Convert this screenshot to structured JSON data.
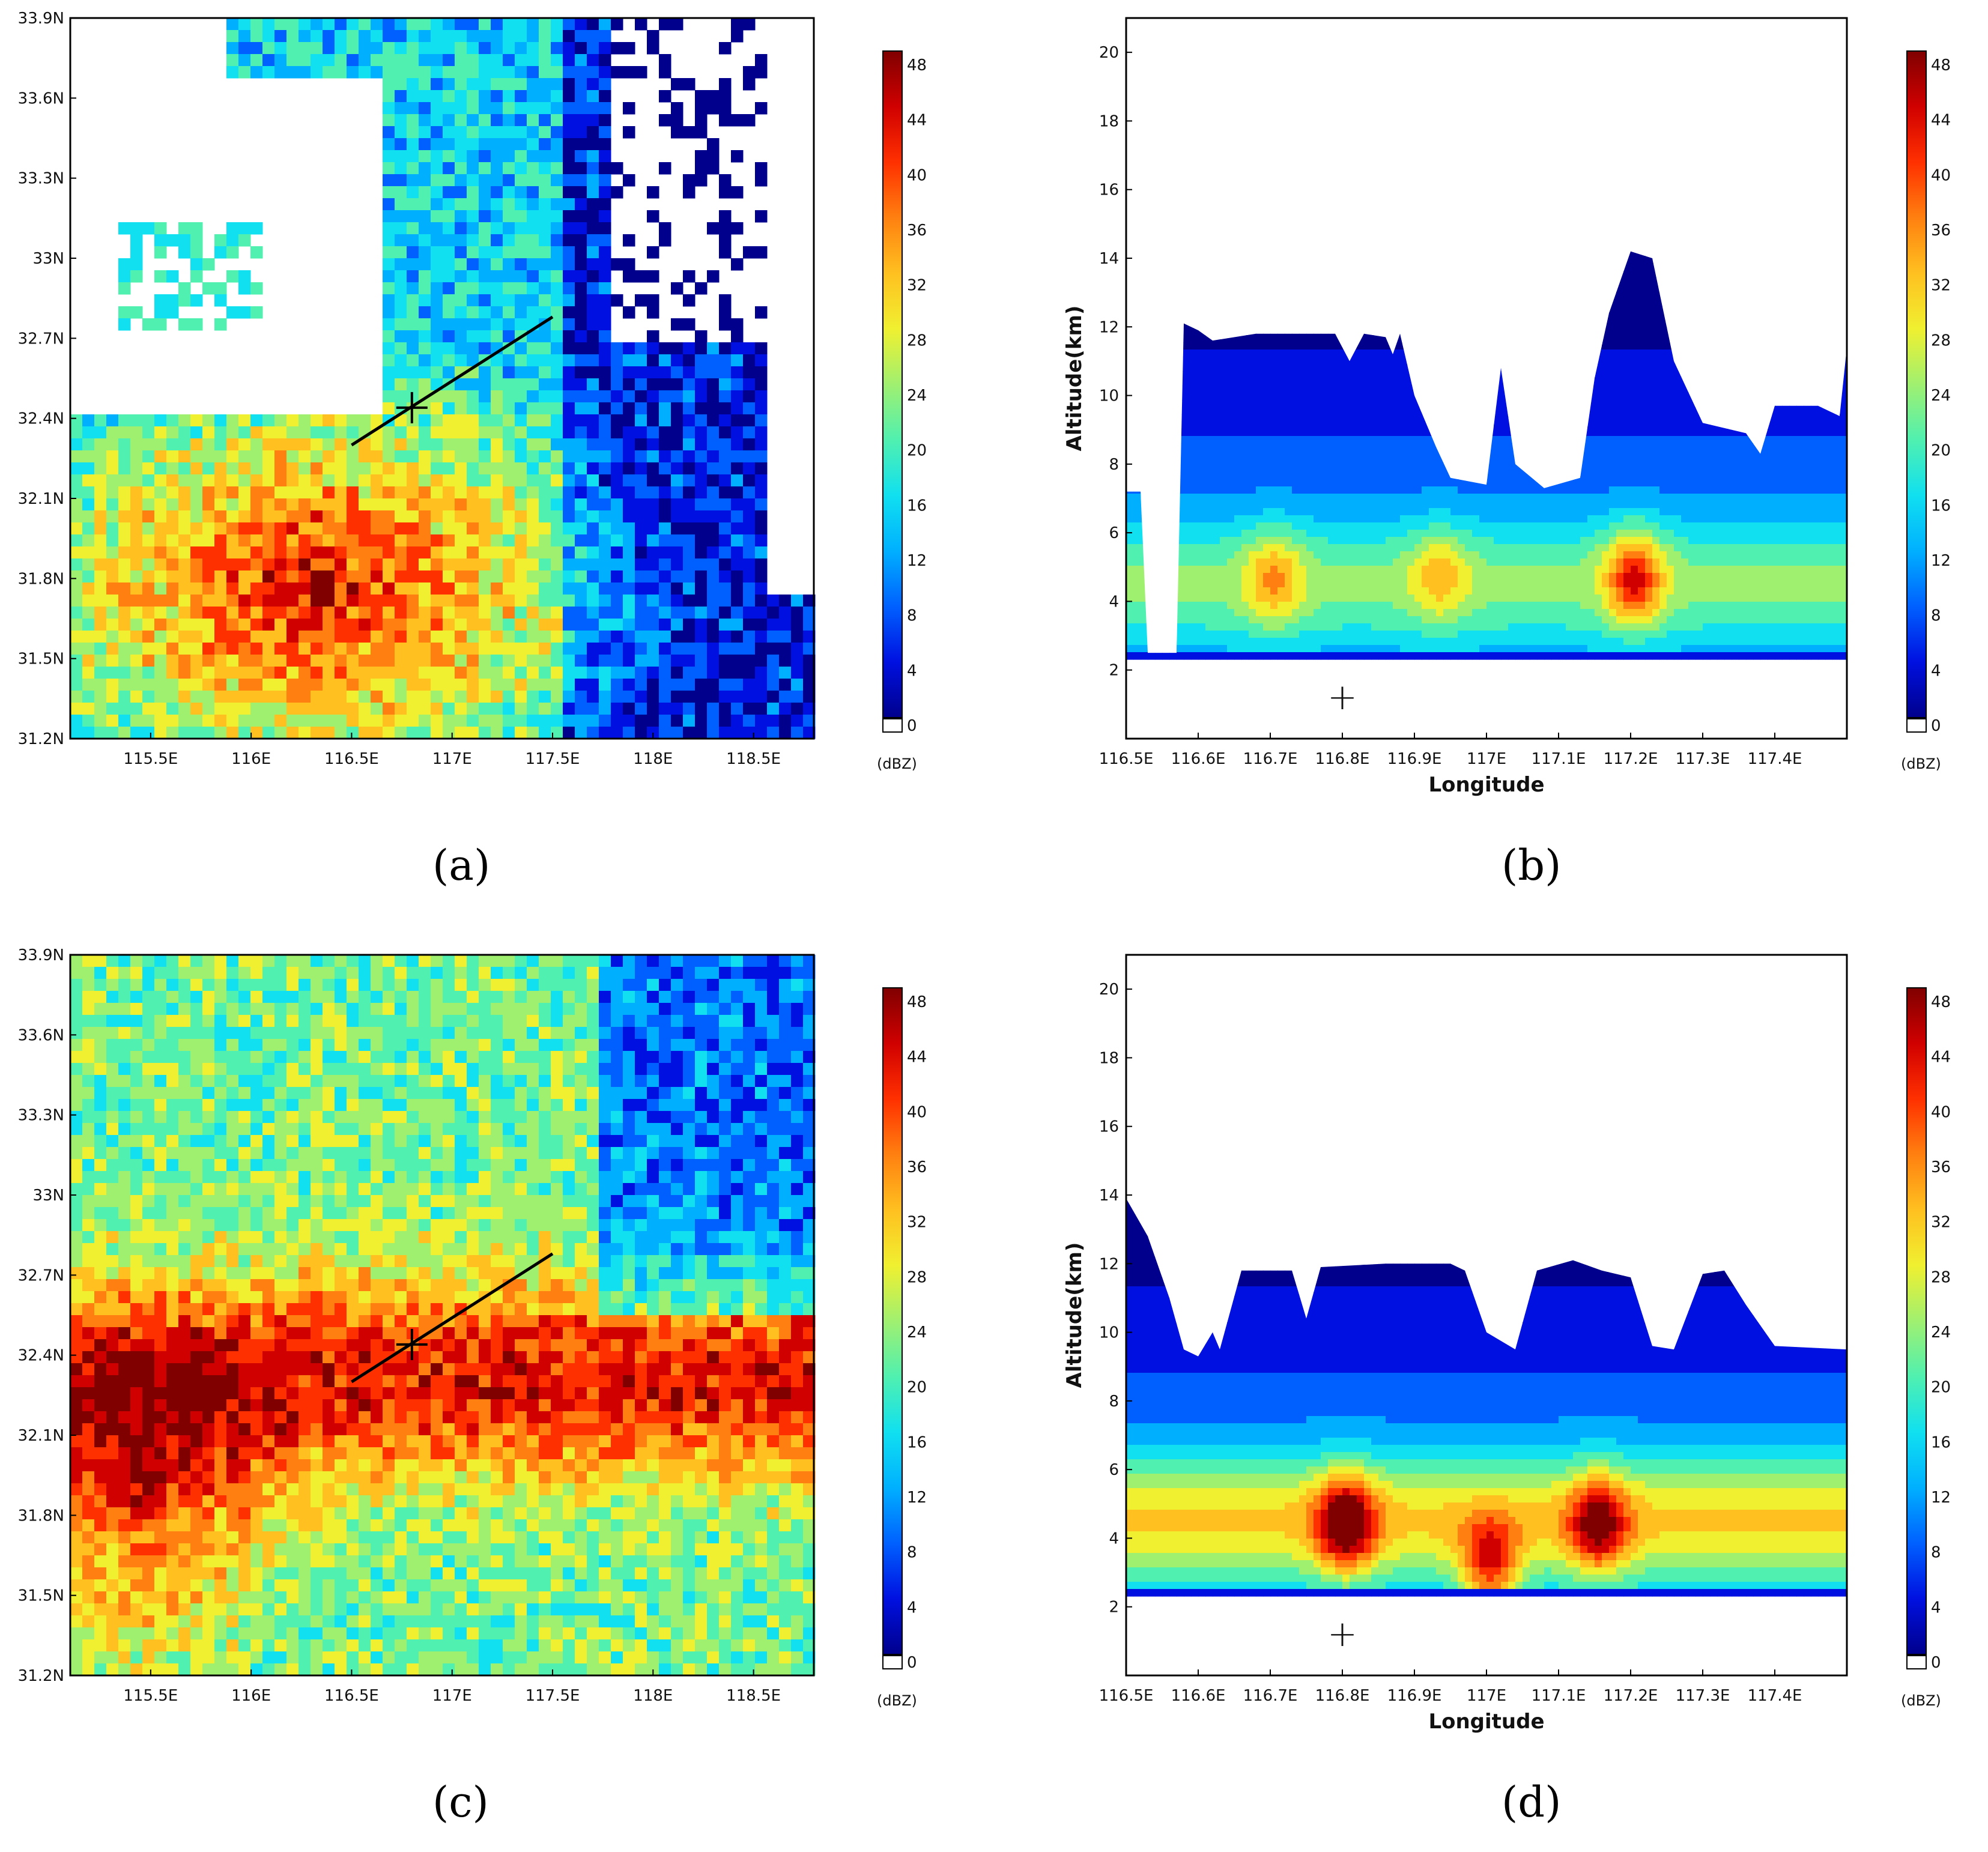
{
  "captions": [
    "(a)",
    "(b)",
    "(c)",
    "(d)"
  ],
  "colorbar": {
    "unit": "(dBZ)",
    "ticks": [
      "0",
      "4",
      "8",
      "12",
      "16",
      "20",
      "24",
      "28",
      "32",
      "36",
      "40",
      "44",
      "48"
    ],
    "stops": [
      "#ffffff",
      "#00008c",
      "#0010e0",
      "#0060ff",
      "#00b0ff",
      "#10e0f0",
      "#50f0b0",
      "#a0f070",
      "#f0f030",
      "#ffc020",
      "#ff8010",
      "#ff3000",
      "#d00000",
      "#800000"
    ]
  },
  "chart_data": [
    {
      "type": "heatmap",
      "panel": "(a)",
      "xlabel": "",
      "ylabel": "",
      "xlim": [
        115.1,
        118.8
      ],
      "ylim": [
        31.2,
        33.9
      ],
      "x_ticks": [
        "115.5E",
        "116E",
        "116.5E",
        "117E",
        "117.5E",
        "118E",
        "118.5E"
      ],
      "y_ticks": [
        "31.2N",
        "31.5N",
        "31.8N",
        "32.1N",
        "32.4N",
        "32.7N",
        "33N",
        "33.3N",
        "33.6N",
        "33.9N"
      ],
      "cross_section_line": {
        "start": [
          116.5,
          32.3
        ],
        "end": [
          117.5,
          32.78
        ]
      },
      "marker": [
        116.8,
        32.44
      ],
      "colorbar_unit": "(dBZ)"
    },
    {
      "type": "heatmap",
      "panel": "(b)",
      "xlabel": "Longitude",
      "ylabel": "Altitude(km)",
      "xlim": [
        116.5,
        117.5
      ],
      "ylim": [
        0,
        21
      ],
      "x_ticks": [
        "116.5E",
        "116.6E",
        "116.7E",
        "116.8E",
        "116.9E",
        "117E",
        "117.1E",
        "117.2E",
        "117.3E",
        "117.4E"
      ],
      "y_ticks": [
        "2",
        "4",
        "6",
        "8",
        "10",
        "12",
        "14",
        "16",
        "18",
        "20"
      ],
      "echo_top_km": [
        [
          116.5,
          7.2
        ],
        [
          116.52,
          7.2
        ],
        [
          116.53,
          2.5
        ],
        [
          116.57,
          2.5
        ],
        [
          116.58,
          12.1
        ],
        [
          116.6,
          11.9
        ],
        [
          116.62,
          11.6
        ],
        [
          116.68,
          11.8
        ],
        [
          116.75,
          11.8
        ],
        [
          116.79,
          11.8
        ],
        [
          116.81,
          11.0
        ],
        [
          116.83,
          11.8
        ],
        [
          116.86,
          11.7
        ],
        [
          116.87,
          11.2
        ],
        [
          116.88,
          11.8
        ],
        [
          116.9,
          10.0
        ],
        [
          116.93,
          8.5
        ],
        [
          116.95,
          7.6
        ],
        [
          117.0,
          7.4
        ],
        [
          117.02,
          10.8
        ],
        [
          117.04,
          8.0
        ],
        [
          117.08,
          7.3
        ],
        [
          117.13,
          7.6
        ],
        [
          117.15,
          10.5
        ],
        [
          117.17,
          12.4
        ],
        [
          117.2,
          14.2
        ],
        [
          117.23,
          14.0
        ],
        [
          117.26,
          11.0
        ],
        [
          117.3,
          9.2
        ],
        [
          117.36,
          8.9
        ],
        [
          117.38,
          8.3
        ],
        [
          117.4,
          9.7
        ],
        [
          117.46,
          9.7
        ],
        [
          117.49,
          9.4
        ],
        [
          117.5,
          11.4
        ]
      ],
      "echo_base_km": 2.3,
      "cores": [
        {
          "lon": 116.7,
          "alt": 4.8,
          "dbz": 32
        },
        {
          "lon": 116.93,
          "alt": 4.9,
          "dbz": 30
        },
        {
          "lon": 117.2,
          "alt": 4.8,
          "dbz": 40
        }
      ],
      "marker": [
        116.8,
        1.1
      ],
      "colorbar_unit": "(dBZ)"
    },
    {
      "type": "heatmap",
      "panel": "(c)",
      "xlabel": "",
      "ylabel": "",
      "xlim": [
        115.1,
        118.8
      ],
      "ylim": [
        31.2,
        33.9
      ],
      "x_ticks": [
        "115.5E",
        "116E",
        "116.5E",
        "117E",
        "117.5E",
        "118E",
        "118.5E"
      ],
      "y_ticks": [
        "31.2N",
        "31.5N",
        "31.8N",
        "32.1N",
        "32.4N",
        "32.7N",
        "33N",
        "33.3N",
        "33.6N",
        "33.9N"
      ],
      "cross_section_line": {
        "start": [
          116.5,
          32.3
        ],
        "end": [
          117.5,
          32.78
        ]
      },
      "marker": [
        116.8,
        32.44
      ],
      "colorbar_unit": "(dBZ)"
    },
    {
      "type": "heatmap",
      "panel": "(d)",
      "xlabel": "Longitude",
      "ylabel": "Altitude(km)",
      "xlim": [
        116.5,
        117.5
      ],
      "ylim": [
        0,
        21
      ],
      "x_ticks": [
        "116.5E",
        "116.6E",
        "116.7E",
        "116.8E",
        "116.9E",
        "117E",
        "117.1E",
        "117.2E",
        "117.3E",
        "117.4E"
      ],
      "y_ticks": [
        "2",
        "4",
        "6",
        "8",
        "10",
        "12",
        "14",
        "16",
        "18",
        "20"
      ],
      "echo_top_km": [
        [
          116.5,
          13.9
        ],
        [
          116.53,
          12.8
        ],
        [
          116.56,
          11.0
        ],
        [
          116.58,
          9.5
        ],
        [
          116.6,
          9.3
        ],
        [
          116.62,
          10.0
        ],
        [
          116.63,
          9.5
        ],
        [
          116.66,
          11.8
        ],
        [
          116.73,
          11.8
        ],
        [
          116.75,
          10.4
        ],
        [
          116.77,
          11.9
        ],
        [
          116.86,
          12.0
        ],
        [
          116.95,
          12.0
        ],
        [
          116.97,
          11.8
        ],
        [
          117.0,
          10.0
        ],
        [
          117.04,
          9.5
        ],
        [
          117.07,
          11.8
        ],
        [
          117.12,
          12.1
        ],
        [
          117.16,
          11.8
        ],
        [
          117.2,
          11.6
        ],
        [
          117.23,
          9.6
        ],
        [
          117.26,
          9.5
        ],
        [
          117.3,
          11.7
        ],
        [
          117.33,
          11.8
        ],
        [
          117.36,
          10.8
        ],
        [
          117.4,
          9.6
        ],
        [
          117.5,
          9.5
        ]
      ],
      "echo_base_km": 2.3,
      "cores": [
        {
          "lon": 116.8,
          "alt": 4.5,
          "dbz": 44
        },
        {
          "lon": 117.0,
          "alt": 3.2,
          "dbz": 40
        },
        {
          "lon": 117.15,
          "alt": 4.5,
          "dbz": 40
        }
      ],
      "marker": [
        116.8,
        1.1
      ],
      "colorbar_unit": "(dBZ)"
    }
  ]
}
